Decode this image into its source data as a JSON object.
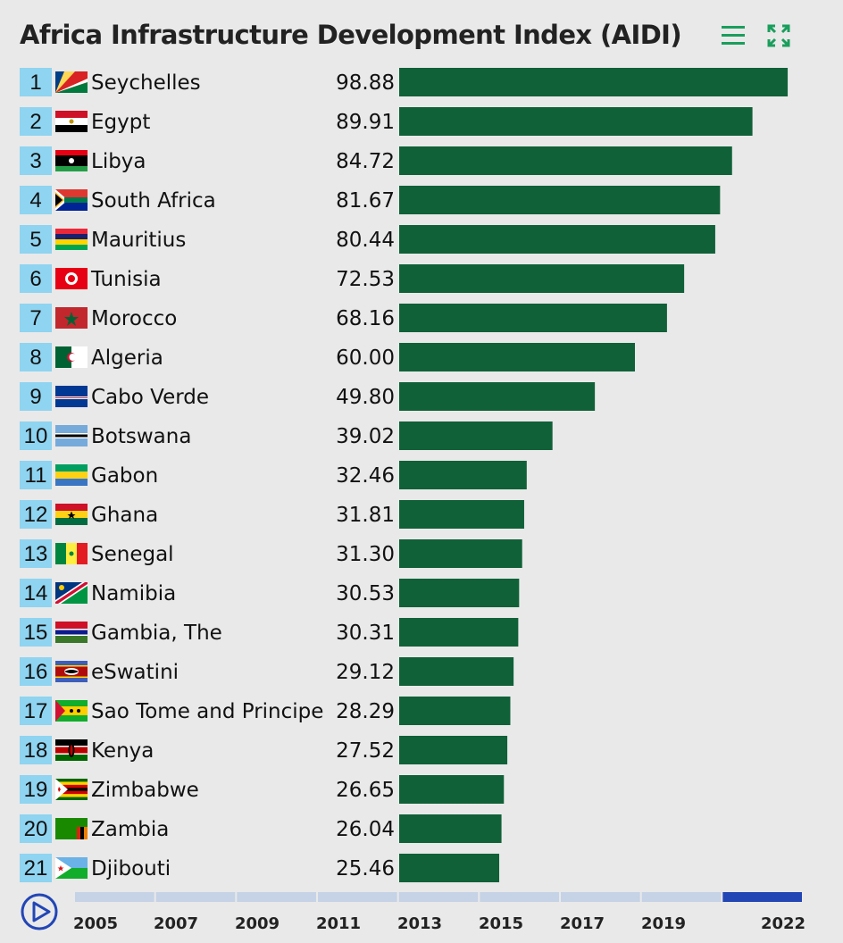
{
  "title": "Africa Infrastructure Development Index (AIDI)",
  "toolbar": {
    "menu_icon": "hamburger-menu-icon",
    "expand_icon": "fullscreen-expand-icon",
    "accent": "#1a9e5c"
  },
  "chart_data": {
    "type": "bar",
    "orientation": "horizontal",
    "categories": [
      "Seychelles",
      "Egypt",
      "Libya",
      "South Africa",
      "Mauritius",
      "Tunisia",
      "Morocco",
      "Algeria",
      "Cabo Verde",
      "Botswana",
      "Gabon",
      "Ghana",
      "Senegal",
      "Namibia",
      "Gambia, The",
      "eSwatini",
      "Sao Tome and Principe",
      "Kenya",
      "Zimbabwe",
      "Zambia",
      "Djibouti"
    ],
    "values": [
      98.88,
      89.91,
      84.72,
      81.67,
      80.44,
      72.53,
      68.16,
      60.0,
      49.8,
      39.02,
      32.46,
      31.81,
      31.3,
      30.53,
      30.31,
      29.12,
      28.29,
      27.52,
      26.65,
      26.04,
      25.46
    ],
    "value_labels": [
      "98.88",
      "89.91",
      "84.72",
      "81.67",
      "80.44",
      "72.53",
      "68.16",
      "60.00",
      "49.80",
      "39.02",
      "32.46",
      "31.81",
      "31.30",
      "30.53",
      "30.31",
      "29.12",
      "28.29",
      "27.52",
      "26.65",
      "26.04",
      "25.46"
    ],
    "ranks": [
      "1",
      "2",
      "3",
      "4",
      "5",
      "6",
      "7",
      "8",
      "9",
      "10",
      "11",
      "12",
      "13",
      "14",
      "15",
      "16",
      "17",
      "18",
      "19",
      "20",
      "21"
    ],
    "bar_color": "#106138",
    "rank_color": "#8fd4f0",
    "xlim": [
      0,
      100
    ]
  },
  "timeline": {
    "play_icon": "play-icon",
    "years": [
      "2005",
      "2007",
      "2009",
      "2011",
      "2013",
      "2015",
      "2017",
      "2019",
      "2022"
    ],
    "selected": "2022",
    "track_color": "#c6d2e6",
    "active_color": "#2346b5"
  }
}
